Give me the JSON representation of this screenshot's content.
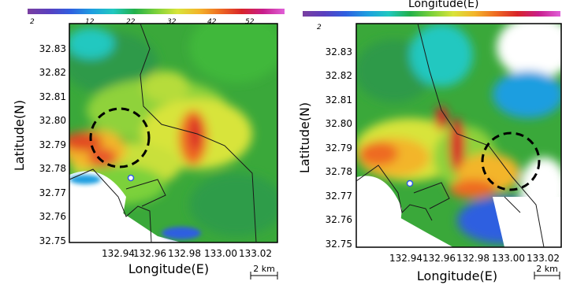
{
  "top_right_caption": "Longitude(E)",
  "colorbar": {
    "tick_labels": [
      "2",
      "12",
      "22",
      "32",
      "42",
      "52"
    ],
    "colors": [
      "#7a3fa0",
      "#5a3fbf",
      "#2f5fe0",
      "#1e9ee0",
      "#20c8c0",
      "#22b04a",
      "#7cd13a",
      "#d8e43a",
      "#f3b52a",
      "#ee6a22",
      "#d8242a",
      "#c81e8c",
      "#e060d8"
    ]
  },
  "panels": [
    {
      "name": "left",
      "xlabel": "Longitude(E)",
      "ylabel": "Latitude(N)",
      "yticks": [
        "32.83",
        "32.82",
        "32.81",
        "32.80",
        "32.79",
        "32.78",
        "32.77",
        "32.76",
        "32.75"
      ],
      "xticks": [
        "132.94",
        "132.96",
        "132.98",
        "133.00",
        "133.02"
      ],
      "scalebar": "2 km"
    },
    {
      "name": "right",
      "xlabel": "Longitude(E)",
      "ylabel": "Latitude(N)",
      "yticks": [
        "32.83",
        "32.82",
        "32.81",
        "32.80",
        "32.79",
        "32.78",
        "32.77",
        "32.76",
        "32.75"
      ],
      "xticks": [
        "132.94",
        "132.96",
        "132.98",
        "133.00",
        "133.02"
      ],
      "scalebar": "2 km"
    }
  ]
}
